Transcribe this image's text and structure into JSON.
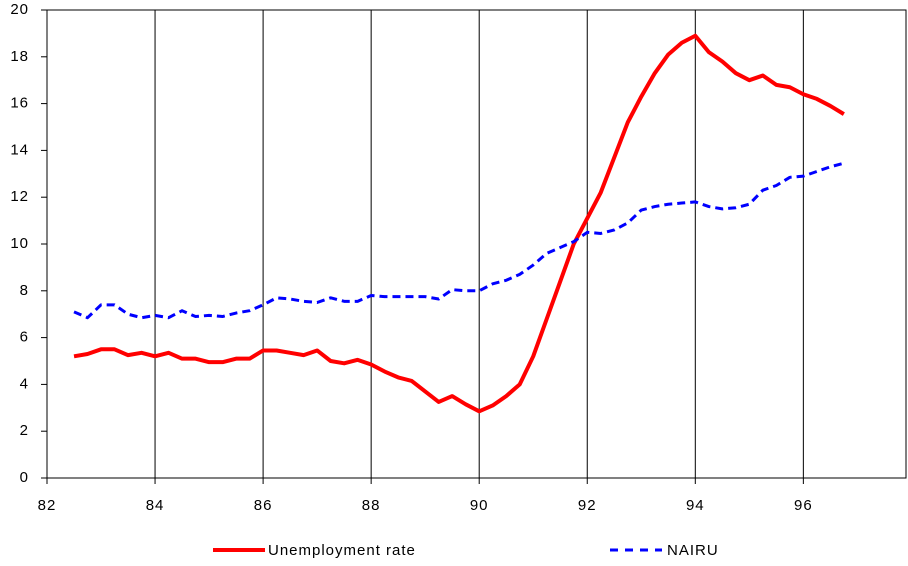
{
  "chart_data": {
    "type": "line",
    "x": [
      82.5,
      82.75,
      83,
      83.25,
      83.5,
      83.75,
      84,
      84.25,
      84.5,
      84.75,
      85,
      85.25,
      85.5,
      85.75,
      86,
      86.25,
      86.5,
      86.75,
      87,
      87.25,
      87.5,
      87.75,
      88,
      88.25,
      88.5,
      88.75,
      89,
      89.25,
      89.5,
      89.75,
      90,
      90.25,
      90.5,
      90.75,
      91,
      91.25,
      91.5,
      91.75,
      92,
      92.25,
      92.5,
      92.75,
      93,
      93.25,
      93.5,
      93.75,
      94,
      94.25,
      94.5,
      94.75,
      95,
      95.25,
      95.5,
      95.75,
      96,
      96.25,
      96.5,
      96.75
    ],
    "series": [
      {
        "name": "Unemployment rate",
        "color": "#ff0000",
        "dash": false,
        "values": [
          5.2,
          5.3,
          5.5,
          5.5,
          5.25,
          5.35,
          5.2,
          5.35,
          5.1,
          5.1,
          4.95,
          4.95,
          5.1,
          5.1,
          5.45,
          5.45,
          5.35,
          5.25,
          5.45,
          5.0,
          4.9,
          5.05,
          4.85,
          4.55,
          4.3,
          4.15,
          3.7,
          3.25,
          3.5,
          3.15,
          2.85,
          3.1,
          3.5,
          4.0,
          5.2,
          6.8,
          8.4,
          10.0,
          11.1,
          12.2,
          13.7,
          15.2,
          16.3,
          17.3,
          18.1,
          18.6,
          18.9,
          18.2,
          17.8,
          17.3,
          17.0,
          17.2,
          16.8,
          16.7,
          16.4,
          16.2,
          15.9,
          15.55
        ]
      },
      {
        "name": "NAIRU",
        "color": "#0000ff",
        "dash": true,
        "values": [
          7.1,
          6.85,
          7.4,
          7.4,
          7.0,
          6.85,
          6.95,
          6.85,
          7.15,
          6.9,
          6.95,
          6.9,
          7.05,
          7.15,
          7.4,
          7.7,
          7.65,
          7.55,
          7.5,
          7.7,
          7.55,
          7.55,
          7.8,
          7.75,
          7.75,
          7.75,
          7.75,
          7.65,
          8.05,
          8.0,
          8.0,
          8.3,
          8.45,
          8.7,
          9.1,
          9.6,
          9.85,
          10.1,
          10.5,
          10.45,
          10.6,
          10.9,
          11.45,
          11.6,
          11.7,
          11.75,
          11.8,
          11.6,
          11.5,
          11.55,
          11.7,
          12.3,
          12.5,
          12.85,
          12.9,
          13.1,
          13.3,
          13.45
        ]
      }
    ],
    "xlim": [
      82,
      97.9
    ],
    "xticks": [
      82,
      84,
      86,
      88,
      90,
      92,
      94,
      96
    ],
    "ylim": [
      0,
      20
    ],
    "yticks": [
      0,
      2,
      4,
      6,
      8,
      10,
      12,
      14,
      16,
      18,
      20
    ],
    "grid": "x",
    "legend": "bottom"
  }
}
